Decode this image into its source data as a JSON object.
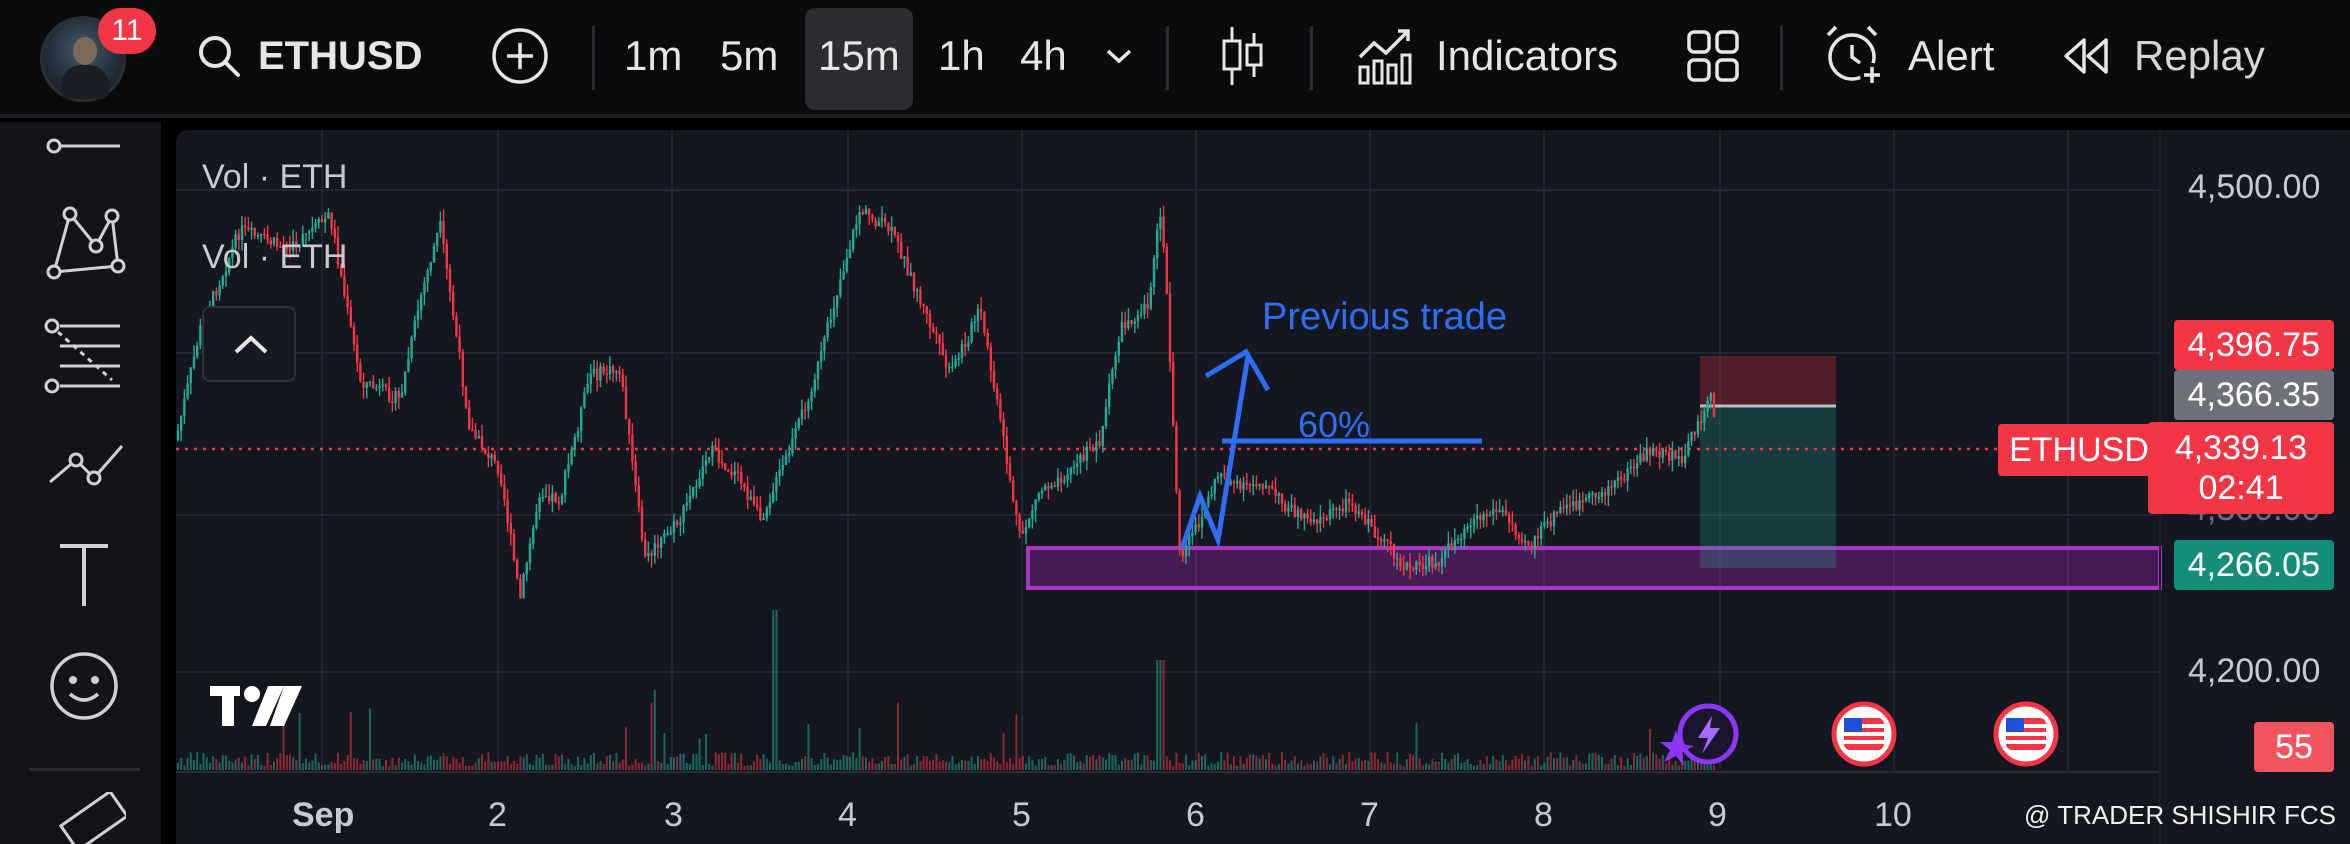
{
  "header": {
    "notification_count": "11",
    "symbol": "ETHUSD",
    "timeframes": [
      "1m",
      "5m",
      "15m",
      "1h",
      "4h"
    ],
    "active_timeframe": "15m",
    "indicators_label": "Indicators",
    "alert_label": "Alert",
    "replay_label": "Replay"
  },
  "left_toolbar": {
    "tools": [
      "line-tool-icon",
      "pattern-tool-icon",
      "fib-tool-icon",
      "path-tool-icon",
      "text-tool-icon",
      "emoji-tool-icon",
      "ruler-icon"
    ]
  },
  "chart": {
    "volume_labels": [
      "Vol · ETH",
      "Vol · ETH"
    ],
    "price_axis": [
      "4,500.00",
      "4,200.00"
    ],
    "price_tags": {
      "top": "4,396.75",
      "mid": "4,366.35",
      "current": "4,339.13",
      "countdown": "02:41",
      "bottom": "4,266.05",
      "volume": "55"
    },
    "symbol_tag": "ETHUSD",
    "x_axis": [
      "Sep",
      "2",
      "3",
      "4",
      "5",
      "6",
      "7",
      "8",
      "9",
      "10"
    ],
    "annotations": {
      "previous_trade": "Previous trade",
      "percent": "60%"
    },
    "watermark": "@ TRADER SHISHIR FCS",
    "colors": {
      "up": "#22ab94",
      "down": "#f23645",
      "annotation": "#2f6df2",
      "zone": "#9c27b0",
      "background": "#141620"
    }
  }
}
